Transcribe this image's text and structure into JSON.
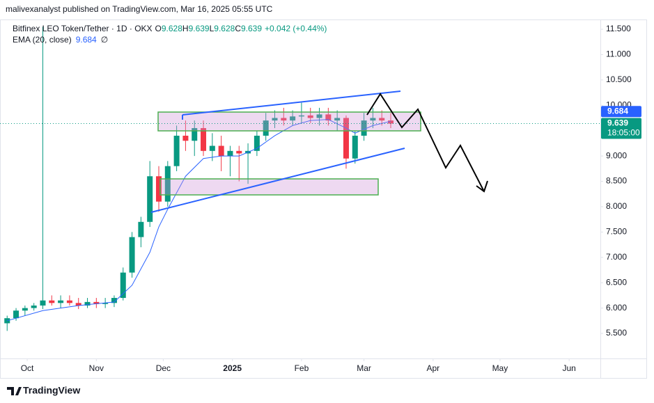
{
  "header": {
    "publisher": "malivexanalyst published on TradingView.com, Mar 16, 2025 05:55 UTC"
  },
  "chart_data": {
    "type": "candlestick",
    "legend": {
      "symbol": "Bitfinex LEO Token/Tether · 1D · OKX",
      "open_label": "O",
      "open": 9.628,
      "high_label": "H",
      "high": 9.639,
      "low_label": "L",
      "low": 9.628,
      "close_label": "C",
      "close": 9.639,
      "change": "+0.042 (+0.44%)",
      "ema_name": "EMA (20, close)",
      "ema_value": 9.684,
      "ema_extra": "∅"
    },
    "candles": {
      "x": [
        -9,
        -5,
        -1,
        3,
        7,
        11,
        15,
        19,
        23,
        27,
        31,
        35,
        39,
        43,
        47,
        51,
        55,
        59,
        63,
        67,
        71,
        75,
        79,
        83,
        87,
        91,
        95,
        99,
        103,
        107,
        111,
        115,
        119,
        123,
        127,
        131,
        135,
        139,
        143,
        147,
        151,
        155,
        159,
        163
      ],
      "open": [
        5.7,
        5.8,
        5.95,
        6.0,
        6.05,
        6.15,
        6.1,
        6.15,
        6.1,
        6.05,
        6.12,
        6.08,
        6.1,
        6.2,
        6.7,
        7.4,
        7.7,
        8.6,
        8.1,
        8.8,
        9.4,
        9.3,
        9.55,
        9.1,
        9.2,
        9.0,
        9.1,
        9.05,
        9.1,
        9.4,
        9.7,
        9.75,
        9.7,
        9.78,
        9.8,
        9.75,
        9.82,
        9.7,
        9.75,
        8.95,
        9.4,
        9.7,
        9.75,
        9.7
      ],
      "high": [
        5.85,
        6.0,
        6.05,
        6.1,
        11.55,
        6.25,
        6.25,
        6.25,
        6.2,
        6.2,
        6.2,
        6.2,
        6.25,
        6.8,
        7.5,
        7.8,
        8.9,
        8.8,
        8.9,
        9.6,
        9.7,
        9.7,
        9.7,
        9.45,
        9.4,
        9.2,
        9.2,
        9.25,
        9.5,
        9.85,
        9.9,
        9.95,
        9.9,
        10.05,
        9.95,
        9.95,
        9.95,
        9.9,
        9.8,
        9.5,
        9.85,
        9.95,
        9.9,
        9.85
      ],
      "low": [
        5.55,
        5.75,
        5.85,
        5.95,
        5.98,
        6.05,
        6.0,
        6.05,
        5.98,
        6.0,
        6.0,
        6.0,
        6.02,
        6.15,
        6.6,
        7.2,
        7.6,
        7.9,
        8.0,
        8.7,
        9.1,
        9.0,
        9.0,
        8.9,
        8.7,
        8.6,
        8.5,
        8.45,
        9.0,
        9.3,
        9.55,
        9.6,
        9.6,
        9.65,
        9.65,
        9.6,
        9.6,
        9.5,
        8.75,
        8.85,
        9.3,
        9.55,
        9.6,
        9.55
      ],
      "close": [
        5.8,
        5.95,
        6.0,
        6.05,
        6.15,
        6.1,
        6.15,
        6.1,
        6.05,
        6.12,
        6.08,
        6.1,
        6.2,
        6.7,
        7.4,
        7.7,
        8.6,
        8.1,
        8.8,
        9.4,
        9.3,
        9.55,
        9.1,
        9.2,
        9.0,
        9.1,
        9.05,
        9.1,
        9.4,
        9.7,
        9.75,
        9.7,
        9.78,
        9.8,
        9.75,
        9.82,
        9.7,
        9.75,
        8.95,
        9.4,
        9.7,
        9.75,
        9.7,
        9.639
      ],
      "up_color": "#089981",
      "down_color": "#f23645"
    },
    "ema": {
      "color": "#2962ff",
      "x": [
        -9,
        7,
        23,
        39,
        47,
        55,
        59,
        63,
        71,
        79,
        87,
        95,
        103,
        111,
        119,
        127,
        135,
        143,
        147,
        155,
        163
      ],
      "values": [
        5.75,
        5.95,
        6.05,
        6.12,
        6.45,
        7.1,
        7.6,
        7.95,
        8.6,
        8.95,
        9.0,
        9.0,
        9.15,
        9.4,
        9.6,
        9.7,
        9.72,
        9.55,
        9.45,
        9.6,
        9.684
      ]
    },
    "price_label": {
      "ema": 9.684,
      "close": 9.639,
      "countdown": "18:05:00"
    },
    "xlim": [
      -12.2,
      257
    ],
    "xticks": [
      {
        "value": 0,
        "label": "Oct"
      },
      {
        "value": 31,
        "label": "Nov"
      },
      {
        "value": 61,
        "label": "Dec"
      },
      {
        "value": 92,
        "label": "2025"
      },
      {
        "value": 123,
        "label": "Feb"
      },
      {
        "value": 151,
        "label": "Mar"
      },
      {
        "value": 182,
        "label": "Apr"
      },
      {
        "value": 212,
        "label": "May"
      },
      {
        "value": 243,
        "label": "Jun"
      }
    ],
    "ylim": [
      5.006,
      11.665
    ],
    "yticks": [
      {
        "value": 5.5,
        "label": "5.500"
      },
      {
        "value": 6,
        "label": "6.000"
      },
      {
        "value": 6.5,
        "label": "6.500"
      },
      {
        "value": 7,
        "label": "7.000"
      },
      {
        "value": 7.5,
        "label": "7.500"
      },
      {
        "value": 8,
        "label": "8.000"
      },
      {
        "value": 8.5,
        "label": "8.500"
      },
      {
        "value": 9,
        "label": "9.000"
      },
      {
        "value": 9.5,
        "label": "9.500"
      },
      {
        "value": 10,
        "label": "10.000"
      },
      {
        "value": 10.5,
        "label": "10.500"
      },
      {
        "value": 11,
        "label": "11.000"
      },
      {
        "value": 11.5,
        "label": "11.500"
      }
    ],
    "grid": false
  },
  "footer": {
    "brand": "TradingView"
  }
}
